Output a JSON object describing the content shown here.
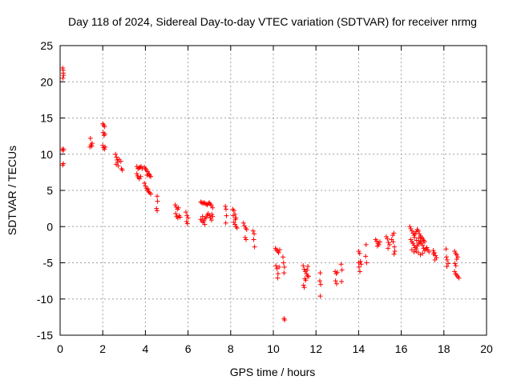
{
  "chart_data": {
    "type": "scatter",
    "title": "Day 118 of 2024, Sidereal Day-to-day VTEC variation (SDTVAR) for receiver nrmg",
    "xlabel": "GPS time / hours",
    "ylabel": "SDTVAR / TECUs",
    "xlim": [
      0,
      20
    ],
    "ylim": [
      -15,
      25
    ],
    "xticks": [
      0,
      2,
      4,
      6,
      8,
      10,
      12,
      14,
      16,
      18,
      20
    ],
    "yticks": [
      -15,
      -10,
      -5,
      0,
      5,
      10,
      15,
      20,
      25
    ],
    "grid": true,
    "legend": "none",
    "marker": "plus",
    "color": "#ff0000",
    "series": [
      {
        "name": "SDTVAR",
        "points": [
          [
            0.12,
            21.9
          ],
          [
            0.14,
            21.6
          ],
          [
            0.15,
            21.2
          ],
          [
            0.13,
            20.5
          ],
          [
            0.16,
            20.9
          ],
          [
            0.1,
            10.7
          ],
          [
            0.14,
            10.5
          ],
          [
            0.17,
            10.7
          ],
          [
            0.12,
            8.5
          ],
          [
            0.15,
            8.7
          ],
          [
            1.42,
            12.2
          ],
          [
            1.45,
            11.3
          ],
          [
            1.48,
            11.1
          ],
          [
            1.5,
            11.5
          ],
          [
            1.4,
            11.0
          ],
          [
            2.0,
            14.2
          ],
          [
            2.05,
            14.0
          ],
          [
            2.08,
            13.8
          ],
          [
            2.02,
            13.0
          ],
          [
            2.06,
            12.6
          ],
          [
            2.1,
            12.8
          ],
          [
            2.0,
            11.2
          ],
          [
            2.04,
            10.9
          ],
          [
            2.08,
            10.7
          ],
          [
            2.11,
            11.0
          ],
          [
            2.6,
            10.0
          ],
          [
            2.64,
            9.6
          ],
          [
            2.68,
            9.2
          ],
          [
            2.7,
            8.9
          ],
          [
            2.63,
            8.6
          ],
          [
            2.72,
            8.4
          ],
          [
            2.77,
            9.3
          ],
          [
            2.85,
            9.0
          ],
          [
            2.88,
            8.0
          ],
          [
            2.92,
            7.8
          ],
          [
            3.6,
            8.3
          ],
          [
            3.65,
            8.0
          ],
          [
            3.7,
            8.1
          ],
          [
            3.75,
            8.2
          ],
          [
            3.8,
            8.3
          ],
          [
            3.85,
            8.0
          ],
          [
            3.63,
            7.0
          ],
          [
            3.68,
            6.8
          ],
          [
            3.72,
            6.6
          ],
          [
            3.78,
            6.9
          ],
          [
            3.6,
            7.3
          ],
          [
            3.95,
            8.2
          ],
          [
            4.0,
            8.0
          ],
          [
            4.05,
            7.8
          ],
          [
            4.1,
            7.6
          ],
          [
            4.15,
            7.3
          ],
          [
            4.2,
            7.0
          ],
          [
            4.25,
            6.9
          ],
          [
            4.08,
            7.1
          ],
          [
            4.18,
            7.2
          ],
          [
            3.95,
            6.0
          ],
          [
            4.0,
            5.6
          ],
          [
            4.05,
            5.3
          ],
          [
            4.1,
            5.0
          ],
          [
            4.15,
            4.8
          ],
          [
            4.2,
            4.7
          ],
          [
            4.25,
            4.5
          ],
          [
            4.12,
            5.2
          ],
          [
            4.55,
            4.2
          ],
          [
            4.57,
            3.5
          ],
          [
            4.52,
            2.5
          ],
          [
            4.55,
            2.2
          ],
          [
            5.4,
            3.0
          ],
          [
            5.45,
            2.7
          ],
          [
            5.5,
            2.4
          ],
          [
            5.55,
            2.6
          ],
          [
            5.42,
            1.8
          ],
          [
            5.47,
            1.4
          ],
          [
            5.52,
            1.2
          ],
          [
            5.58,
            1.5
          ],
          [
            5.63,
            1.3
          ],
          [
            5.9,
            2.0
          ],
          [
            5.95,
            1.5
          ],
          [
            6.0,
            1.2
          ],
          [
            5.93,
            0.7
          ],
          [
            5.97,
            0.4
          ],
          [
            6.6,
            3.4
          ],
          [
            6.65,
            3.3
          ],
          [
            6.7,
            3.2
          ],
          [
            6.75,
            3.3
          ],
          [
            6.8,
            3.2
          ],
          [
            6.85,
            3.1
          ],
          [
            6.9,
            3.0
          ],
          [
            6.95,
            3.2
          ],
          [
            7.0,
            3.3
          ],
          [
            7.05,
            3.1
          ],
          [
            7.1,
            2.9
          ],
          [
            7.15,
            2.6
          ],
          [
            6.6,
            1.0
          ],
          [
            6.65,
            0.8
          ],
          [
            6.7,
            0.6
          ],
          [
            6.75,
            0.8
          ],
          [
            6.8,
            1.1
          ],
          [
            6.85,
            1.3
          ],
          [
            6.9,
            1.6
          ],
          [
            6.95,
            1.8
          ],
          [
            7.0,
            1.5
          ],
          [
            7.05,
            1.2
          ],
          [
            7.1,
            0.9
          ],
          [
            7.12,
            1.7
          ],
          [
            7.15,
            1.4
          ],
          [
            6.68,
            1.4
          ],
          [
            6.78,
            0.3
          ],
          [
            7.75,
            2.8
          ],
          [
            7.78,
            2.4
          ],
          [
            7.8,
            1.5
          ],
          [
            7.77,
            0.5
          ],
          [
            8.1,
            2.4
          ],
          [
            8.15,
            2.2
          ],
          [
            8.2,
            1.7
          ],
          [
            8.25,
            1.2
          ],
          [
            8.15,
            0.6
          ],
          [
            8.2,
            0.3
          ],
          [
            8.25,
            0.0
          ],
          [
            8.3,
            -0.2
          ],
          [
            8.22,
            1.0
          ],
          [
            8.12,
            1.5
          ],
          [
            8.6,
            0.5
          ],
          [
            8.65,
            0.1
          ],
          [
            8.7,
            -0.2
          ],
          [
            8.75,
            -0.4
          ],
          [
            8.72,
            -1.8
          ],
          [
            8.68,
            -1.5
          ],
          [
            9.05,
            -0.6
          ],
          [
            9.1,
            -1.0
          ],
          [
            9.08,
            -1.8
          ],
          [
            9.12,
            -2.8
          ],
          [
            10.1,
            -3.0
          ],
          [
            10.15,
            -3.2
          ],
          [
            10.2,
            -3.4
          ],
          [
            10.25,
            -3.6
          ],
          [
            10.3,
            -3.2
          ],
          [
            10.12,
            -5.4
          ],
          [
            10.17,
            -5.8
          ],
          [
            10.22,
            -6.5
          ],
          [
            10.2,
            -7.1
          ],
          [
            10.27,
            -5.6
          ],
          [
            10.45,
            -4.2
          ],
          [
            10.48,
            -5.0
          ],
          [
            10.52,
            -5.6
          ],
          [
            10.5,
            -6.4
          ],
          [
            10.5,
            -12.7
          ],
          [
            10.53,
            -12.9
          ],
          [
            11.4,
            -5.4
          ],
          [
            11.45,
            -5.9
          ],
          [
            11.5,
            -6.2
          ],
          [
            11.55,
            -6.5
          ],
          [
            11.6,
            -6.8
          ],
          [
            11.65,
            -6.9
          ],
          [
            11.48,
            -7.2
          ],
          [
            11.52,
            -7.4
          ],
          [
            11.58,
            -6.0
          ],
          [
            11.42,
            -8.1
          ],
          [
            11.45,
            -8.4
          ],
          [
            11.62,
            -5.5
          ],
          [
            12.2,
            -6.4
          ],
          [
            12.18,
            -7.5
          ],
          [
            12.22,
            -8.0
          ],
          [
            12.2,
            -9.6
          ],
          [
            12.9,
            -6.2
          ],
          [
            12.95,
            -6.5
          ],
          [
            13.0,
            -6.3
          ],
          [
            12.92,
            -7.5
          ],
          [
            12.97,
            -7.9
          ],
          [
            13.18,
            -5.2
          ],
          [
            13.22,
            -6.0
          ],
          [
            13.2,
            -7.6
          ],
          [
            14.0,
            -3.4
          ],
          [
            14.05,
            -3.7
          ],
          [
            14.08,
            -4.8
          ],
          [
            14.12,
            -5.2
          ],
          [
            14.02,
            -5.6
          ],
          [
            14.06,
            -6.2
          ],
          [
            14.0,
            -5.0
          ],
          [
            14.35,
            -2.5
          ],
          [
            14.33,
            -4.1
          ],
          [
            14.37,
            -5.0
          ],
          [
            14.8,
            -1.8
          ],
          [
            14.85,
            -2.0
          ],
          [
            14.9,
            -2.3
          ],
          [
            14.95,
            -2.5
          ],
          [
            15.0,
            -2.1
          ],
          [
            14.88,
            -2.7
          ],
          [
            15.3,
            -1.4
          ],
          [
            15.35,
            -1.7
          ],
          [
            15.4,
            -2.2
          ],
          [
            15.45,
            -2.5
          ],
          [
            15.38,
            -3.0
          ],
          [
            15.55,
            -1.8
          ],
          [
            15.6,
            -1.2
          ],
          [
            15.65,
            -0.9
          ],
          [
            15.62,
            -2.1
          ],
          [
            15.68,
            -2.8
          ],
          [
            15.7,
            -3.4
          ],
          [
            15.66,
            -3.8
          ],
          [
            16.4,
            0.0
          ],
          [
            16.45,
            -0.3
          ],
          [
            16.5,
            -0.6
          ],
          [
            16.55,
            -0.9
          ],
          [
            16.6,
            -1.2
          ],
          [
            16.65,
            -1.0
          ],
          [
            16.7,
            -0.7
          ],
          [
            16.75,
            -0.4
          ],
          [
            16.8,
            -0.6
          ],
          [
            16.85,
            -1.0
          ],
          [
            16.9,
            -1.3
          ],
          [
            16.95,
            -1.5
          ],
          [
            17.0,
            -1.7
          ],
          [
            17.05,
            -1.9
          ],
          [
            17.1,
            -2.1
          ],
          [
            16.45,
            -1.8
          ],
          [
            16.5,
            -2.1
          ],
          [
            16.55,
            -2.3
          ],
          [
            16.6,
            -2.6
          ],
          [
            16.65,
            -2.9
          ],
          [
            16.7,
            -3.1
          ],
          [
            16.75,
            -2.7
          ],
          [
            16.8,
            -2.4
          ],
          [
            16.85,
            -2.2
          ],
          [
            16.9,
            -2.0
          ],
          [
            16.95,
            -2.3
          ],
          [
            17.0,
            -2.6
          ],
          [
            17.05,
            -3.0
          ],
          [
            17.1,
            -3.3
          ],
          [
            17.15,
            -3.1
          ],
          [
            17.2,
            -2.9
          ],
          [
            17.25,
            -3.2
          ],
          [
            17.3,
            -3.5
          ],
          [
            16.5,
            -3.2
          ],
          [
            16.6,
            -3.5
          ],
          [
            16.7,
            -3.4
          ],
          [
            16.8,
            -3.6
          ],
          [
            16.9,
            -3.9
          ],
          [
            17.0,
            -3.7
          ],
          [
            16.62,
            -1.5
          ],
          [
            16.72,
            -1.9
          ],
          [
            16.82,
            -1.6
          ],
          [
            17.5,
            -3.3
          ],
          [
            17.55,
            -3.6
          ],
          [
            17.6,
            -4.0
          ],
          [
            17.65,
            -4.3
          ],
          [
            17.58,
            -4.6
          ],
          [
            17.52,
            -3.8
          ],
          [
            18.1,
            -3.1
          ],
          [
            18.12,
            -4.2
          ],
          [
            18.15,
            -4.6
          ],
          [
            18.14,
            -5.5
          ],
          [
            18.2,
            -5.1
          ],
          [
            18.5,
            -3.4
          ],
          [
            18.55,
            -3.7
          ],
          [
            18.6,
            -3.9
          ],
          [
            18.65,
            -4.2
          ],
          [
            18.6,
            -4.5
          ],
          [
            18.5,
            -6.2
          ],
          [
            18.55,
            -6.5
          ],
          [
            18.6,
            -6.7
          ],
          [
            18.65,
            -6.9
          ],
          [
            18.7,
            -7.1
          ],
          [
            18.52,
            -5.1
          ],
          [
            18.56,
            -5.4
          ]
        ]
      }
    ]
  }
}
